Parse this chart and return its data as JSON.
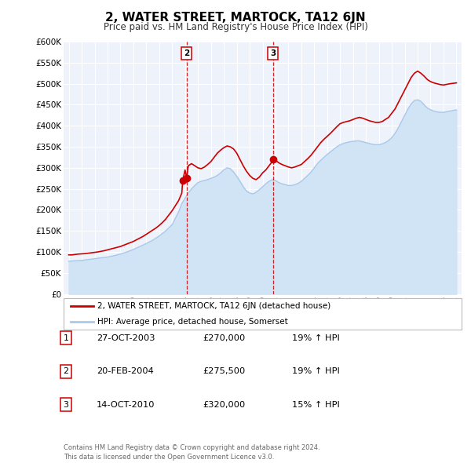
{
  "title": "2, WATER STREET, MARTOCK, TA12 6JN",
  "subtitle": "Price paid vs. HM Land Registry's House Price Index (HPI)",
  "legend_label_red": "2, WATER STREET, MARTOCK, TA12 6JN (detached house)",
  "legend_label_blue": "HPI: Average price, detached house, Somerset",
  "ylim": [
    0,
    600000
  ],
  "yticks": [
    0,
    50000,
    100000,
    150000,
    200000,
    250000,
    300000,
    350000,
    400000,
    450000,
    500000,
    550000,
    600000
  ],
  "ytick_labels": [
    "£0",
    "£50K",
    "£100K",
    "£150K",
    "£200K",
    "£250K",
    "£300K",
    "£350K",
    "£400K",
    "£450K",
    "£500K",
    "£550K",
    "£600K"
  ],
  "plot_bg_color": "#eef2fb",
  "grid_color": "#ffffff",
  "red_color": "#cc0000",
  "blue_color": "#aac8e8",
  "blue_fill_color": "#d0e4f5",
  "sale_markers": [
    {
      "label": "1",
      "date_num": 2003.82,
      "price": 270000
    },
    {
      "label": "2",
      "date_num": 2004.13,
      "price": 275500
    },
    {
      "label": "3",
      "date_num": 2010.79,
      "price": 320000
    }
  ],
  "vline_dates": [
    2004.13,
    2010.79
  ],
  "vline_labels": [
    "2",
    "3"
  ],
  "table_data": [
    {
      "num": "1",
      "date": "27-OCT-2003",
      "price": "£270,000",
      "change": "19% ↑ HPI"
    },
    {
      "num": "2",
      "date": "20-FEB-2004",
      "price": "£275,500",
      "change": "19% ↑ HPI"
    },
    {
      "num": "3",
      "date": "14-OCT-2010",
      "price": "£320,000",
      "change": "15% ↑ HPI"
    }
  ],
  "footer": "Contains HM Land Registry data © Crown copyright and database right 2024.\nThis data is licensed under the Open Government Licence v3.0.",
  "xtick_years": [
    1995,
    1996,
    1997,
    1998,
    1999,
    2000,
    2001,
    2002,
    2003,
    2004,
    2005,
    2006,
    2007,
    2008,
    2009,
    2010,
    2011,
    2012,
    2013,
    2014,
    2015,
    2016,
    2017,
    2018,
    2019,
    2020,
    2021,
    2022,
    2023,
    2024,
    2025
  ],
  "red_data": [
    [
      1995.0,
      93000
    ],
    [
      1995.25,
      93000
    ],
    [
      1995.5,
      94000
    ],
    [
      1995.75,
      95000
    ],
    [
      1996.0,
      95500
    ],
    [
      1996.25,
      96000
    ],
    [
      1996.5,
      97000
    ],
    [
      1996.75,
      98000
    ],
    [
      1997.0,
      99000
    ],
    [
      1997.25,
      100000
    ],
    [
      1997.5,
      101500
    ],
    [
      1997.75,
      103000
    ],
    [
      1998.0,
      105000
    ],
    [
      1998.25,
      107000
    ],
    [
      1998.5,
      109000
    ],
    [
      1998.75,
      111000
    ],
    [
      1999.0,
      113000
    ],
    [
      1999.25,
      116000
    ],
    [
      1999.5,
      119000
    ],
    [
      1999.75,
      122000
    ],
    [
      2000.0,
      125000
    ],
    [
      2000.25,
      129000
    ],
    [
      2000.5,
      133000
    ],
    [
      2000.75,
      137000
    ],
    [
      2001.0,
      142000
    ],
    [
      2001.25,
      147000
    ],
    [
      2001.5,
      152000
    ],
    [
      2001.75,
      157000
    ],
    [
      2002.0,
      163000
    ],
    [
      2002.25,
      170000
    ],
    [
      2002.5,
      178000
    ],
    [
      2002.75,
      188000
    ],
    [
      2003.0,
      198000
    ],
    [
      2003.25,
      210000
    ],
    [
      2003.5,
      222000
    ],
    [
      2003.75,
      240000
    ],
    [
      2003.82,
      270000
    ],
    [
      2004.0,
      295000
    ],
    [
      2004.13,
      275500
    ],
    [
      2004.25,
      305000
    ],
    [
      2004.5,
      310000
    ],
    [
      2004.75,
      305000
    ],
    [
      2005.0,
      300000
    ],
    [
      2005.25,
      298000
    ],
    [
      2005.5,
      302000
    ],
    [
      2005.75,
      308000
    ],
    [
      2006.0,
      315000
    ],
    [
      2006.25,
      325000
    ],
    [
      2006.5,
      335000
    ],
    [
      2006.75,
      342000
    ],
    [
      2007.0,
      348000
    ],
    [
      2007.25,
      352000
    ],
    [
      2007.5,
      350000
    ],
    [
      2007.75,
      345000
    ],
    [
      2008.0,
      335000
    ],
    [
      2008.25,
      320000
    ],
    [
      2008.5,
      305000
    ],
    [
      2008.75,
      292000
    ],
    [
      2009.0,
      282000
    ],
    [
      2009.25,
      275000
    ],
    [
      2009.5,
      272000
    ],
    [
      2009.75,
      278000
    ],
    [
      2010.0,
      288000
    ],
    [
      2010.25,
      295000
    ],
    [
      2010.5,
      305000
    ],
    [
      2010.75,
      315000
    ],
    [
      2010.79,
      320000
    ],
    [
      2011.0,
      318000
    ],
    [
      2011.25,
      312000
    ],
    [
      2011.5,
      308000
    ],
    [
      2011.75,
      305000
    ],
    [
      2012.0,
      302000
    ],
    [
      2012.25,
      300000
    ],
    [
      2012.5,
      302000
    ],
    [
      2012.75,
      305000
    ],
    [
      2013.0,
      308000
    ],
    [
      2013.25,
      315000
    ],
    [
      2013.5,
      322000
    ],
    [
      2013.75,
      330000
    ],
    [
      2014.0,
      340000
    ],
    [
      2014.25,
      350000
    ],
    [
      2014.5,
      360000
    ],
    [
      2014.75,
      368000
    ],
    [
      2015.0,
      375000
    ],
    [
      2015.25,
      382000
    ],
    [
      2015.5,
      390000
    ],
    [
      2015.75,
      398000
    ],
    [
      2016.0,
      405000
    ],
    [
      2016.25,
      408000
    ],
    [
      2016.5,
      410000
    ],
    [
      2016.75,
      412000
    ],
    [
      2017.0,
      415000
    ],
    [
      2017.25,
      418000
    ],
    [
      2017.5,
      420000
    ],
    [
      2017.75,
      418000
    ],
    [
      2018.0,
      415000
    ],
    [
      2018.25,
      412000
    ],
    [
      2018.5,
      410000
    ],
    [
      2018.75,
      408000
    ],
    [
      2019.0,
      408000
    ],
    [
      2019.25,
      410000
    ],
    [
      2019.5,
      415000
    ],
    [
      2019.75,
      420000
    ],
    [
      2020.0,
      430000
    ],
    [
      2020.25,
      440000
    ],
    [
      2020.5,
      455000
    ],
    [
      2020.75,
      470000
    ],
    [
      2021.0,
      485000
    ],
    [
      2021.25,
      500000
    ],
    [
      2021.5,
      515000
    ],
    [
      2021.75,
      525000
    ],
    [
      2022.0,
      530000
    ],
    [
      2022.25,
      525000
    ],
    [
      2022.5,
      518000
    ],
    [
      2022.75,
      510000
    ],
    [
      2023.0,
      505000
    ],
    [
      2023.25,
      502000
    ],
    [
      2023.5,
      500000
    ],
    [
      2023.75,
      498000
    ],
    [
      2024.0,
      497000
    ],
    [
      2024.5,
      500000
    ],
    [
      2025.0,
      502000
    ]
  ],
  "blue_data": [
    [
      1995.0,
      78000
    ],
    [
      1995.5,
      79000
    ],
    [
      1996.0,
      80000
    ],
    [
      1996.5,
      82000
    ],
    [
      1997.0,
      84000
    ],
    [
      1997.5,
      86000
    ],
    [
      1998.0,
      88000
    ],
    [
      1998.5,
      91000
    ],
    [
      1999.0,
      95000
    ],
    [
      1999.5,
      100000
    ],
    [
      2000.0,
      106000
    ],
    [
      2000.5,
      113000
    ],
    [
      2001.0,
      120000
    ],
    [
      2001.5,
      128000
    ],
    [
      2002.0,
      138000
    ],
    [
      2002.5,
      150000
    ],
    [
      2003.0,
      165000
    ],
    [
      2003.5,
      195000
    ],
    [
      2003.75,
      215000
    ],
    [
      2004.0,
      228000
    ],
    [
      2004.25,
      240000
    ],
    [
      2004.5,
      250000
    ],
    [
      2004.75,
      258000
    ],
    [
      2005.0,
      265000
    ],
    [
      2005.25,
      268000
    ],
    [
      2005.5,
      270000
    ],
    [
      2005.75,
      272000
    ],
    [
      2006.0,
      275000
    ],
    [
      2006.25,
      278000
    ],
    [
      2006.5,
      282000
    ],
    [
      2006.75,
      288000
    ],
    [
      2007.0,
      295000
    ],
    [
      2007.25,
      300000
    ],
    [
      2007.5,
      298000
    ],
    [
      2007.75,
      290000
    ],
    [
      2008.0,
      280000
    ],
    [
      2008.25,
      268000
    ],
    [
      2008.5,
      255000
    ],
    [
      2008.75,
      245000
    ],
    [
      2009.0,
      240000
    ],
    [
      2009.25,
      238000
    ],
    [
      2009.5,
      242000
    ],
    [
      2009.75,
      248000
    ],
    [
      2010.0,
      255000
    ],
    [
      2010.25,
      262000
    ],
    [
      2010.5,
      268000
    ],
    [
      2010.75,
      272000
    ],
    [
      2011.0,
      270000
    ],
    [
      2011.25,
      265000
    ],
    [
      2011.5,
      262000
    ],
    [
      2011.75,
      260000
    ],
    [
      2012.0,
      258000
    ],
    [
      2012.25,
      258000
    ],
    [
      2012.5,
      260000
    ],
    [
      2012.75,
      263000
    ],
    [
      2013.0,
      268000
    ],
    [
      2013.25,
      275000
    ],
    [
      2013.5,
      282000
    ],
    [
      2013.75,
      290000
    ],
    [
      2014.0,
      300000
    ],
    [
      2014.25,
      310000
    ],
    [
      2014.5,
      318000
    ],
    [
      2014.75,
      325000
    ],
    [
      2015.0,
      332000
    ],
    [
      2015.25,
      338000
    ],
    [
      2015.5,
      344000
    ],
    [
      2015.75,
      350000
    ],
    [
      2016.0,
      355000
    ],
    [
      2016.25,
      358000
    ],
    [
      2016.5,
      360000
    ],
    [
      2016.75,
      362000
    ],
    [
      2017.0,
      363000
    ],
    [
      2017.25,
      364000
    ],
    [
      2017.5,
      364000
    ],
    [
      2017.75,
      362000
    ],
    [
      2018.0,
      360000
    ],
    [
      2018.25,
      358000
    ],
    [
      2018.5,
      356000
    ],
    [
      2018.75,
      355000
    ],
    [
      2019.0,
      355000
    ],
    [
      2019.25,
      357000
    ],
    [
      2019.5,
      360000
    ],
    [
      2019.75,
      365000
    ],
    [
      2020.0,
      372000
    ],
    [
      2020.25,
      382000
    ],
    [
      2020.5,
      395000
    ],
    [
      2020.75,
      410000
    ],
    [
      2021.0,
      425000
    ],
    [
      2021.25,
      440000
    ],
    [
      2021.5,
      452000
    ],
    [
      2021.75,
      460000
    ],
    [
      2022.0,
      462000
    ],
    [
      2022.25,
      458000
    ],
    [
      2022.5,
      450000
    ],
    [
      2022.75,
      442000
    ],
    [
      2023.0,
      438000
    ],
    [
      2023.25,
      435000
    ],
    [
      2023.5,
      433000
    ],
    [
      2023.75,
      432000
    ],
    [
      2024.0,
      432000
    ],
    [
      2024.5,
      435000
    ],
    [
      2025.0,
      438000
    ]
  ]
}
